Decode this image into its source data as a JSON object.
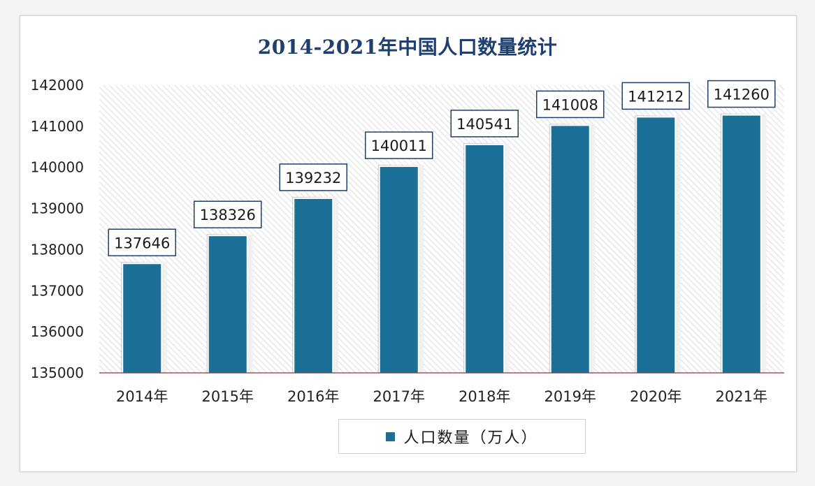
{
  "chart_data": {
    "type": "bar",
    "title": "2014-2021年中国人口数量统计",
    "categories": [
      "2014年",
      "2015年",
      "2016年",
      "2017年",
      "2018年",
      "2019年",
      "2020年",
      "2021年"
    ],
    "series": [
      {
        "name": "人口数量（万人）",
        "values": [
          137646,
          138326,
          139232,
          140011,
          140541,
          141008,
          141212,
          141260
        ]
      }
    ],
    "data_labels": [
      "137646",
      "138326",
      "139232",
      "140011",
      "140541",
      "141008",
      "141212",
      "141260"
    ],
    "ylim": [
      135000,
      142000
    ],
    "yticks": [
      135000,
      136000,
      137000,
      138000,
      139000,
      140000,
      141000,
      142000
    ],
    "ytick_labels": [
      "135000",
      "136000",
      "137000",
      "138000",
      "139000",
      "140000",
      "141000",
      "142000"
    ],
    "xlabel": "",
    "ylabel": "",
    "grid": false,
    "legend": "bottom",
    "bar_color": "#1b6f97",
    "title_color": "#1f3f6e"
  }
}
